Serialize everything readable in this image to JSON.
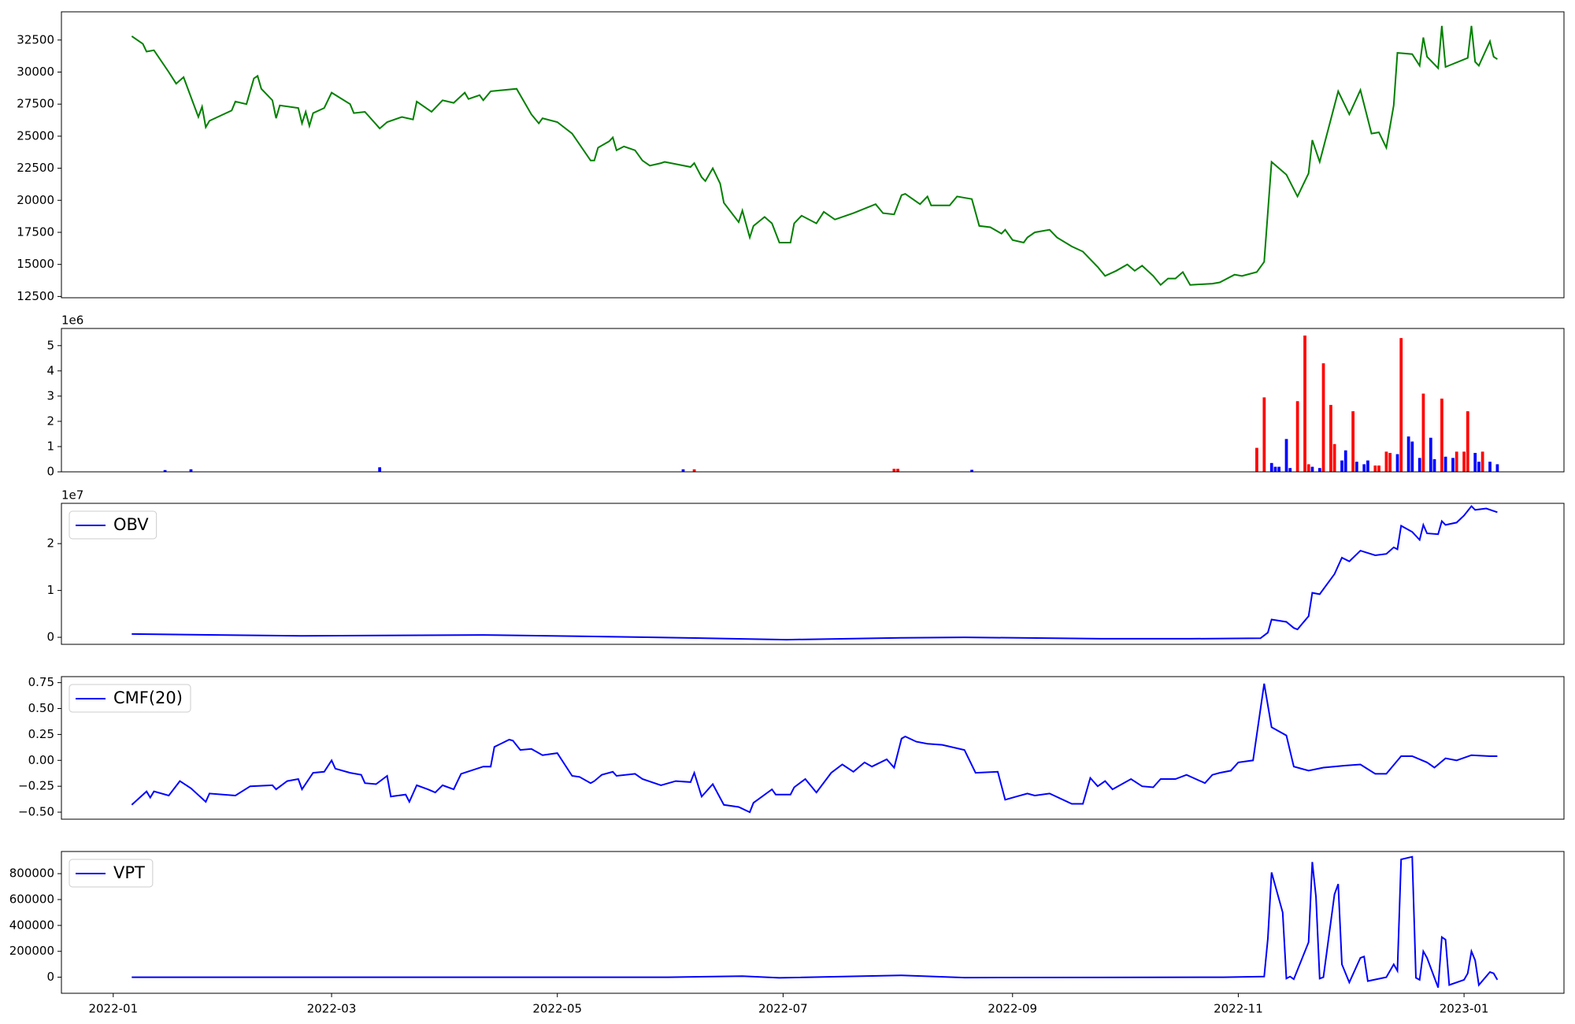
{
  "chart_data": [
    {
      "type": "line",
      "xlim": [
        -14,
        392
      ],
      "ylim": [
        12400,
        34700
      ],
      "yticks": [
        12500,
        15000,
        17500,
        20000,
        22500,
        25000,
        27500,
        30000,
        32500
      ],
      "x": [
        5,
        8,
        9,
        11,
        15,
        17,
        19,
        23,
        24,
        25,
        26,
        32,
        33,
        36,
        38,
        39,
        40,
        43,
        44,
        45,
        50,
        51,
        52,
        53,
        54,
        57,
        59,
        64,
        65,
        68,
        72,
        74,
        78,
        81,
        82,
        86,
        89,
        92,
        95,
        96,
        99,
        100,
        102,
        109,
        113,
        115,
        116,
        120,
        124,
        129,
        130,
        131,
        134,
        135,
        136,
        138,
        141,
        143,
        145,
        148,
        149,
        156,
        157,
        159,
        160,
        162,
        164,
        165,
        169,
        170,
        172,
        173,
        176,
        178,
        180,
        183,
        184,
        186,
        190,
        192,
        195,
        200,
        206,
        208,
        211,
        213,
        214,
        218,
        220,
        221,
        226,
        228,
        232,
        234,
        237,
        240,
        241,
        243,
        246,
        247,
        249,
        253,
        255,
        259,
        262,
        266,
        268,
        271,
        274,
        276,
        278,
        281,
        283,
        285,
        287,
        289,
        291,
        297,
        299,
        303,
        305,
        309,
        311,
        313,
        317,
        320,
        323,
        324,
        326,
        331,
        334,
        337,
        340,
        342,
        344,
        346,
        347,
        351,
        353,
        354,
        355,
        358,
        359,
        360,
        366,
        367,
        368,
        369,
        372,
        373,
        374
      ],
      "series": [
        {
          "color": "#008000",
          "values": [
            32800,
            32200,
            31600,
            31700,
            30000,
            29100,
            29600,
            26500,
            27300,
            25700,
            26200,
            27000,
            27700,
            27500,
            29500,
            29700,
            28700,
            27800,
            26400,
            27400,
            27200,
            26000,
            26900,
            25800,
            26800,
            27200,
            28400,
            27500,
            26800,
            26900,
            25600,
            26100,
            26500,
            26300,
            27700,
            26900,
            27800,
            27600,
            28400,
            27900,
            28200,
            27800,
            28500,
            28700,
            26700,
            26000,
            26400,
            26100,
            25200,
            23100,
            23100,
            24100,
            24600,
            24900,
            23900,
            24200,
            23900,
            23100,
            22700,
            22900,
            23000,
            22600,
            22900,
            21800,
            21500,
            22500,
            21300,
            19800,
            18300,
            19200,
            17100,
            18000,
            18700,
            18200,
            16700,
            16700,
            18200,
            18800,
            18200,
            19100,
            18500,
            19000,
            19700,
            19000,
            18900,
            20400,
            20500,
            19700,
            20300,
            19600,
            19600,
            20300,
            20100,
            18000,
            17900,
            17400,
            17700,
            16900,
            16700,
            17100,
            17500,
            17700,
            17100,
            16400,
            16000,
            14800,
            14100,
            14500,
            15000,
            14500,
            14900,
            14100,
            13400,
            13900,
            13900,
            14400,
            13400,
            13500,
            13600,
            14200,
            14100,
            14400,
            15200,
            23000,
            22000,
            20300,
            22100,
            24700,
            23000,
            28500,
            26700,
            28600,
            25200,
            25300,
            24100,
            27400,
            31500,
            31400,
            30500,
            32700,
            31200,
            30300,
            33600,
            30400,
            31100,
            33600,
            30800,
            30500,
            32400,
            31200,
            31000
          ]
        }
      ]
    },
    {
      "type": "bar",
      "xlim": [
        -14,
        392
      ],
      "ylim": [
        0,
        5.68
      ],
      "yticks": [
        0,
        1,
        2,
        3,
        4,
        5
      ],
      "y_offset_label": "1e6",
      "x": [
        14,
        21,
        72,
        154,
        157,
        211,
        212,
        232,
        309,
        311,
        313,
        314,
        315,
        317,
        318,
        320,
        322,
        323,
        324,
        326,
        327,
        329,
        330,
        332,
        333,
        335,
        336,
        338,
        339,
        341,
        342,
        344,
        345,
        347,
        348,
        350,
        351,
        353,
        354,
        356,
        357,
        359,
        360,
        362,
        363,
        365,
        366,
        368,
        369,
        370,
        372,
        374
      ],
      "values": [
        0.07,
        0.1,
        0.18,
        0.1,
        0.1,
        0.12,
        0.12,
        0.08,
        0.95,
        2.95,
        0.35,
        0.2,
        0.2,
        1.3,
        0.15,
        2.8,
        5.4,
        0.3,
        0.2,
        0.15,
        4.3,
        2.65,
        1.1,
        0.45,
        0.85,
        2.4,
        0.4,
        0.3,
        0.45,
        0.25,
        0.25,
        0.8,
        0.75,
        0.7,
        5.3,
        1.4,
        1.2,
        0.55,
        3.1,
        1.35,
        0.5,
        2.9,
        0.6,
        0.55,
        0.8,
        0.8,
        2.4,
        0.75,
        0.4,
        0.8,
        0.4,
        0.3
      ],
      "colors": [
        "#0000ff",
        "#0000ff",
        "#0000ff",
        "#0000ff",
        "#ff0000",
        "#ff0000",
        "#ff0000",
        "#0000ff",
        "#ff0000",
        "#ff0000",
        "#0000ff",
        "#0000ff",
        "#0000ff",
        "#0000ff",
        "#0000ff",
        "#ff0000",
        "#ff0000",
        "#ff0000",
        "#0000ff",
        "#0000ff",
        "#ff0000",
        "#ff0000",
        "#ff0000",
        "#0000ff",
        "#0000ff",
        "#ff0000",
        "#0000ff",
        "#0000ff",
        "#0000ff",
        "#ff0000",
        "#ff0000",
        "#ff0000",
        "#ff0000",
        "#0000ff",
        "#ff0000",
        "#0000ff",
        "#0000ff",
        "#0000ff",
        "#ff0000",
        "#0000ff",
        "#0000ff",
        "#ff0000",
        "#0000ff",
        "#0000ff",
        "#ff0000",
        "#ff0000",
        "#ff0000",
        "#0000ff",
        "#0000ff",
        "#ff0000",
        "#0000ff",
        "#0000ff"
      ]
    },
    {
      "type": "line",
      "xlim": [
        -14,
        392
      ],
      "ylim": [
        -0.15,
        2.86
      ],
      "yticks": [
        0,
        1,
        2
      ],
      "y_offset_label": "1e7",
      "legend": "upper left",
      "x": [
        5,
        51,
        100,
        146,
        182,
        213,
        230,
        268,
        291,
        310,
        312,
        313,
        317,
        319,
        320,
        323,
        324,
        326,
        330,
        332,
        334,
        337,
        341,
        344,
        346,
        347,
        348,
        351,
        353,
        354,
        355,
        358,
        359,
        360,
        363,
        365,
        367,
        368,
        371,
        374
      ],
      "series": [
        {
          "name": "OBV",
          "color": "#0000ff",
          "values": [
            0.07,
            0.03,
            0.05,
            0.0,
            -0.05,
            -0.01,
            0.0,
            -0.03,
            -0.03,
            -0.02,
            0.1,
            0.38,
            0.33,
            0.2,
            0.17,
            0.45,
            0.95,
            0.92,
            1.35,
            1.7,
            1.62,
            1.85,
            1.75,
            1.78,
            1.92,
            1.88,
            2.38,
            2.25,
            2.08,
            2.4,
            2.22,
            2.2,
            2.48,
            2.4,
            2.45,
            2.6,
            2.8,
            2.72,
            2.75,
            2.67
          ]
        }
      ]
    },
    {
      "type": "line",
      "xlim": [
        -14,
        392
      ],
      "ylim": [
        -0.568,
        0.808
      ],
      "legend": "upper left",
      "yticks": [
        {
          "value": -0.5,
          "label": "−0.50"
        },
        {
          "value": -0.25,
          "label": "−0.25"
        },
        {
          "value": 0,
          "label": "0.00"
        },
        {
          "value": 0.25,
          "label": "0.25"
        },
        {
          "value": 0.5,
          "label": "0.50"
        },
        {
          "value": 0.75,
          "label": "0.75"
        }
      ],
      "x": [
        5,
        9,
        10,
        11,
        15,
        18,
        21,
        25,
        26,
        33,
        37,
        43,
        44,
        47,
        50,
        51,
        54,
        57,
        59,
        60,
        64,
        67,
        68,
        71,
        74,
        75,
        79,
        80,
        82,
        85,
        87,
        89,
        92,
        94,
        100,
        102,
        103,
        107,
        108,
        110,
        113,
        116,
        120,
        124,
        126,
        129,
        130,
        132,
        135,
        136,
        141,
        143,
        148,
        152,
        156,
        157,
        159,
        162,
        165,
        169,
        172,
        173,
        178,
        179,
        183,
        184,
        187,
        190,
        194,
        197,
        200,
        203,
        205,
        209,
        211,
        213,
        214,
        217,
        220,
        224,
        230,
        233,
        239,
        241,
        244,
        247,
        249,
        253,
        259,
        262,
        264,
        266,
        268,
        270,
        275,
        278,
        281,
        283,
        287,
        290,
        295,
        297,
        299,
        302,
        304,
        308,
        311,
        313,
        317,
        319,
        323,
        327,
        333,
        337,
        341,
        344,
        348,
        351,
        355,
        357,
        360,
        363,
        367,
        372,
        374
      ],
      "series": [
        {
          "name": "CMF(20)",
          "color": "#0000ff",
          "values": [
            -0.43,
            -0.3,
            -0.36,
            -0.3,
            -0.34,
            -0.2,
            -0.27,
            -0.4,
            -0.32,
            -0.34,
            -0.25,
            -0.24,
            -0.28,
            -0.2,
            -0.18,
            -0.28,
            -0.12,
            -0.11,
            0.0,
            -0.08,
            -0.12,
            -0.14,
            -0.22,
            -0.23,
            -0.15,
            -0.35,
            -0.33,
            -0.4,
            -0.24,
            -0.28,
            -0.31,
            -0.24,
            -0.28,
            -0.13,
            -0.06,
            -0.06,
            0.13,
            0.2,
            0.19,
            0.1,
            0.11,
            0.05,
            0.07,
            -0.15,
            -0.16,
            -0.22,
            -0.2,
            -0.14,
            -0.11,
            -0.15,
            -0.13,
            -0.18,
            -0.24,
            -0.2,
            -0.21,
            -0.12,
            -0.35,
            -0.23,
            -0.43,
            -0.45,
            -0.5,
            -0.41,
            -0.28,
            -0.33,
            -0.33,
            -0.26,
            -0.18,
            -0.31,
            -0.12,
            -0.04,
            -0.11,
            -0.02,
            -0.06,
            0.01,
            -0.07,
            0.21,
            0.23,
            0.18,
            0.16,
            0.15,
            0.1,
            -0.12,
            -0.11,
            -0.38,
            -0.35,
            -0.32,
            -0.34,
            -0.32,
            -0.42,
            -0.42,
            -0.17,
            -0.25,
            -0.2,
            -0.28,
            -0.18,
            -0.25,
            -0.26,
            -0.18,
            -0.18,
            -0.14,
            -0.22,
            -0.14,
            -0.12,
            -0.1,
            -0.02,
            0.0,
            0.74,
            0.32,
            0.24,
            -0.06,
            -0.1,
            -0.07,
            -0.05,
            -0.04,
            -0.13,
            -0.13,
            0.04,
            0.04,
            -0.02,
            -0.07,
            0.02,
            0.0,
            0.05,
            0.04,
            0.04
          ]
        }
      ]
    },
    {
      "type": "line",
      "xlim": [
        -14,
        392
      ],
      "ylim": [
        -124000,
        971000
      ],
      "yticks": [
        0,
        200000,
        400000,
        600000,
        800000
      ],
      "legend": "upper left",
      "xticks": [
        {
          "value": 0,
          "label": "2022-01"
        },
        {
          "value": 59,
          "label": "2022-03"
        },
        {
          "value": 120,
          "label": "2022-05"
        },
        {
          "value": 181,
          "label": "2022-07"
        },
        {
          "value": 243,
          "label": "2022-09"
        },
        {
          "value": 304,
          "label": "2022-11"
        },
        {
          "value": 365,
          "label": "2023-01"
        }
      ],
      "x": [
        5,
        50,
        100,
        150,
        170,
        180,
        213,
        230,
        300,
        311,
        312,
        313,
        316,
        317,
        318,
        319,
        323,
        324,
        325,
        326,
        327,
        330,
        331,
        332,
        334,
        337,
        338,
        339,
        344,
        346,
        347,
        348,
        351,
        352,
        353,
        354,
        355,
        358,
        359,
        360,
        361,
        365,
        366,
        367,
        368,
        369,
        372,
        373,
        374
      ],
      "series": [
        {
          "name": "VPT",
          "color": "#0000ff",
          "values": [
            0,
            0,
            0,
            0,
            8000,
            -5000,
            15000,
            -3000,
            0,
            5000,
            300000,
            810000,
            500000,
            -10000,
            5000,
            -15000,
            270000,
            890000,
            620000,
            -10000,
            0,
            640000,
            720000,
            100000,
            -40000,
            150000,
            160000,
            -30000,
            0,
            100000,
            50000,
            910000,
            930000,
            -5000,
            -20000,
            200000,
            150000,
            -80000,
            310000,
            290000,
            -60000,
            -20000,
            30000,
            200000,
            130000,
            -60000,
            40000,
            30000,
            -20000
          ]
        }
      ]
    }
  ]
}
